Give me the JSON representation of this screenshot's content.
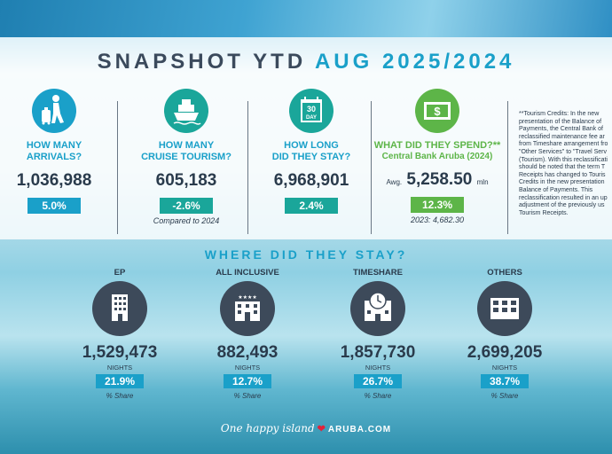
{
  "header": {
    "title_main": "SNAPSHOT YTD ",
    "title_accent": "AUG 2025/2024"
  },
  "colors": {
    "accent_blue": "#1aa0c9",
    "accent_green": "#5db548",
    "dark_slate": "#3d4a5a",
    "teal_badge": "#1aa69a"
  },
  "stats": {
    "arrivals": {
      "icon": "traveler-luggage-icon",
      "question_line1": "HOW MANY",
      "question_line2": "ARRIVALS?",
      "value": "1,036,988",
      "change": "5.0%"
    },
    "cruise": {
      "icon": "cruise-ship-icon",
      "question_line1": "HOW MANY",
      "question_line2": "CRUISE TOURISM?",
      "value": "605,183",
      "change": "-2.6%",
      "note": "Compared to 2024"
    },
    "stay": {
      "icon": "calendar-30-day-icon",
      "calendar_num": "30",
      "calendar_word": "DAY",
      "question_line1": "HOW LONG",
      "question_line2": "DID THEY STAY?",
      "value": "6,968,901",
      "change": "2.4%"
    },
    "spend": {
      "icon": "dollar-bill-icon",
      "question_line1": "WHAT DID THEY SPEND?**",
      "question_line2": "Central Bank Aruba (2024)",
      "avg_label": "Awg.",
      "value": "5,258.50",
      "unit": "mln",
      "change": "12.3%",
      "note": "2023: 4,682.30"
    }
  },
  "credits_note": [
    "**Tourism Credits: In the new",
    "presentation of the Balance of",
    "Payments, the Central Bank of",
    "reclassified maintenance fee ar",
    "from Timeshare arrangement fro",
    "\"Other Services\" to \"Travel Serv",
    "(Tourism). With this reclassificati",
    "should be noted that the term T",
    "Receipts has changed to Touris",
    "Credits in the new presentation",
    "Balance of Payments. This",
    "reclassification resulted in an up",
    "adjustment of the previously us",
    "Tourism Receipts."
  ],
  "stay_section": {
    "title": "WHERE DID THEY STAY?",
    "nights_label": "NIGHTS",
    "share_label": "% Share",
    "items": [
      {
        "label": "EP",
        "icon": "hotel-building-icon",
        "value": "1,529,473",
        "share": "21.9%"
      },
      {
        "label": "ALL INCLUSIVE",
        "icon": "four-star-hotel-icon",
        "value": "882,493",
        "share": "12.7%"
      },
      {
        "label": "TIMESHARE",
        "icon": "timeshare-clock-building-icon",
        "value": "1,857,730",
        "share": "26.7%"
      },
      {
        "label": "OTHERS",
        "icon": "apartment-building-icon",
        "value": "2,699,205",
        "share": "38.7%"
      }
    ]
  },
  "footer": {
    "tagline": "One happy island",
    "heart": "❤",
    "brand": "ARUBA.COM"
  }
}
